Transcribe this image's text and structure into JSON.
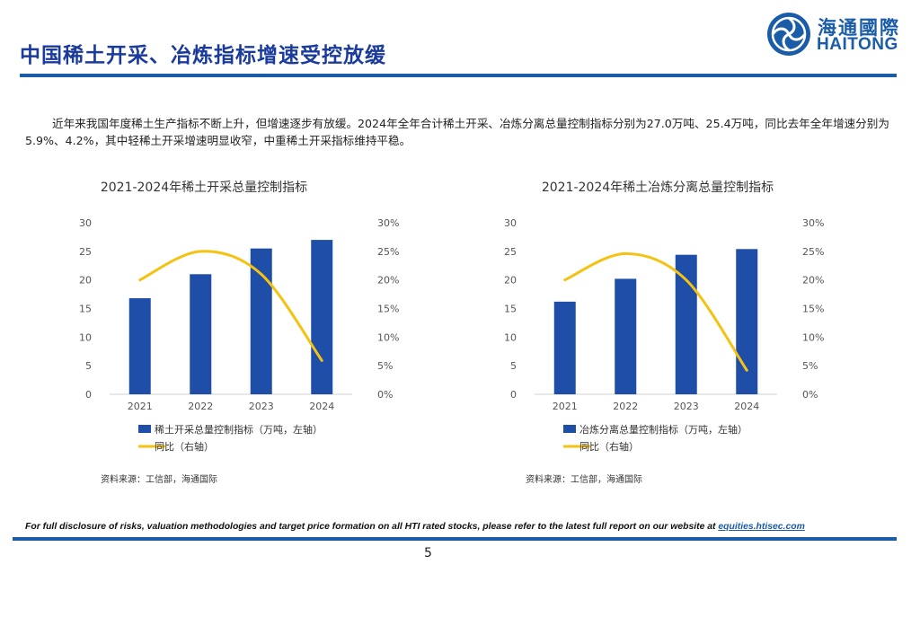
{
  "header": {
    "title": "中国稀土开采、冶炼指标增速受控放缓",
    "logo_cn": "海通國際",
    "logo_en": "HAITONG"
  },
  "intro": "近年来我国年度稀土生产指标不断上升，但增速逐步有放缓。2024年全年合计稀土开采、冶炼分离总量控制指标分别为27.0万吨、25.4万吨，同比去年全年增速分别为5.9%、4.2%，其中轻稀土开采增速明显收窄，中重稀土开采指标维持平稳。",
  "colors": {
    "bar": "#1f4ea8",
    "line": "#f5c211",
    "brand": "#1a5ca8",
    "title": "#1a3b9c"
  },
  "chart_data": [
    {
      "type": "bar",
      "title": "2021-2024年稀土开采总量控制指标",
      "categories": [
        "2021",
        "2022",
        "2023",
        "2024"
      ],
      "series": [
        {
          "name": "稀土开采总量控制指标（万吨，左轴）",
          "axis": "left",
          "type": "bar",
          "values": [
            16.8,
            21.0,
            25.5,
            27.0
          ]
        },
        {
          "name": "同比（右轴）",
          "axis": "right",
          "type": "line",
          "values": [
            20.0,
            25.0,
            21.0,
            5.9
          ]
        }
      ],
      "left_ticks": [
        "0",
        "5",
        "10",
        "15",
        "20",
        "25",
        "30"
      ],
      "right_ticks": [
        "0%",
        "5%",
        "10%",
        "15%",
        "20%",
        "25%",
        "30%"
      ],
      "ylim_left": [
        0,
        30
      ],
      "ylim_right": [
        0,
        30
      ],
      "source": "资料来源：工信部，海通国际"
    },
    {
      "type": "bar",
      "title": "2021-2024年稀土冶炼分离总量控制指标",
      "categories": [
        "2021",
        "2022",
        "2023",
        "2024"
      ],
      "series": [
        {
          "name": "冶炼分离总量控制指标（万吨，左轴）",
          "axis": "left",
          "type": "bar",
          "values": [
            16.2,
            20.2,
            24.4,
            25.4
          ]
        },
        {
          "name": "同比（右轴）",
          "axis": "right",
          "type": "line",
          "values": [
            20.0,
            24.6,
            20.0,
            4.2
          ]
        }
      ],
      "left_ticks": [
        "0",
        "5",
        "10",
        "15",
        "20",
        "25",
        "30"
      ],
      "right_ticks": [
        "0%",
        "5%",
        "10%",
        "15%",
        "20%",
        "25%",
        "30%"
      ],
      "ylim_left": [
        0,
        30
      ],
      "ylim_right": [
        0,
        30
      ],
      "source": "资料来源：工信部，海通国际"
    }
  ],
  "footer": {
    "disclosure": "For full disclosure of risks, valuation methodologies and target price formation on all HTI rated stocks, please refer to the latest full report on our website at ",
    "link": "equities.htisec.com",
    "page": "5"
  }
}
